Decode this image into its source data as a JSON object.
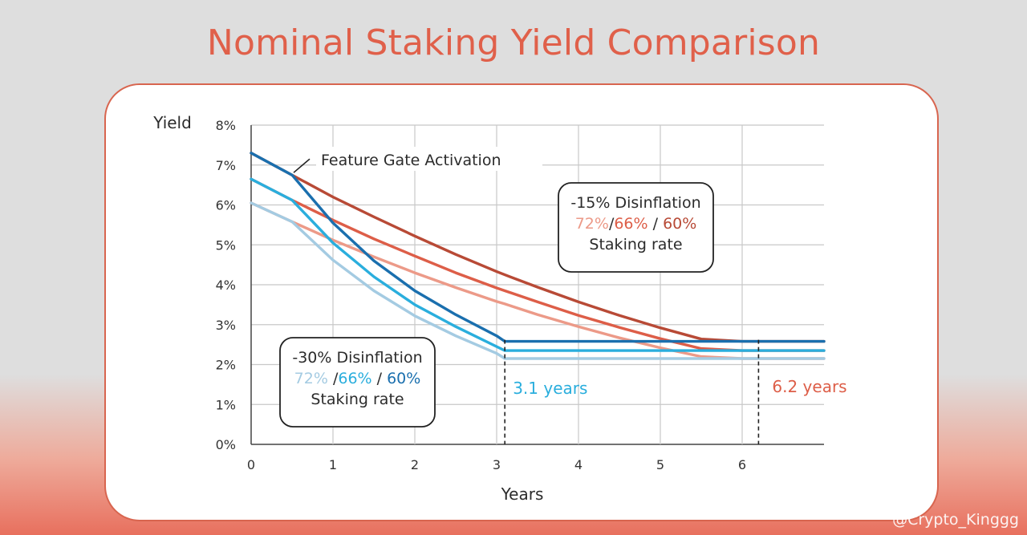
{
  "title": "Nominal Staking Yield Comparison",
  "watermark": "@Crypto_Kinggg",
  "chart_data": {
    "type": "line",
    "title": "Nominal Staking Yield Comparison",
    "xlabel": "Years",
    "ylabel": "Yield",
    "xlim": [
      0,
      7
    ],
    "ylim": [
      0,
      8
    ],
    "x_ticks": [
      "0",
      "1",
      "2",
      "3",
      "4",
      "5",
      "6"
    ],
    "y_ticks": [
      "0%",
      "1%",
      "2%",
      "3%",
      "4%",
      "5%",
      "6%",
      "7%",
      "8%"
    ],
    "grid": true,
    "x": [
      0,
      0.5,
      1,
      1.5,
      2,
      2.5,
      3,
      3.1,
      3.5,
      4,
      4.5,
      5,
      5.5,
      6,
      6.2,
      7
    ],
    "series": [
      {
        "name": "-15% Disinflation 60% staking",
        "color": "#b84a36",
        "values": [
          7.3,
          6.75,
          6.2,
          5.7,
          5.22,
          4.76,
          4.33,
          4.25,
          3.94,
          3.57,
          3.23,
          2.92,
          2.64,
          2.58,
          2.58,
          2.58
        ]
      },
      {
        "name": "-15% Disinflation 66% staking",
        "color": "#dd5e48",
        "values": [
          6.65,
          6.12,
          5.62,
          5.15,
          4.72,
          4.3,
          3.92,
          3.85,
          3.57,
          3.23,
          2.93,
          2.65,
          2.4,
          2.35,
          2.35,
          2.35
        ]
      },
      {
        "name": "-15% Disinflation 72% staking",
        "color": "#ec9a88",
        "values": [
          6.05,
          5.58,
          5.12,
          4.7,
          4.3,
          3.93,
          3.58,
          3.52,
          3.25,
          2.95,
          2.67,
          2.42,
          2.2,
          2.15,
          2.15,
          2.15
        ]
      },
      {
        "name": "-30% Disinflation 60% staking",
        "color": "#1a6fae",
        "values": [
          7.3,
          6.75,
          5.55,
          4.6,
          3.85,
          3.25,
          2.72,
          2.58,
          2.58,
          2.58,
          2.58,
          2.58,
          2.58,
          2.58,
          2.58,
          2.58
        ]
      },
      {
        "name": "-30% Disinflation 66% staking",
        "color": "#2aaedd",
        "values": [
          6.65,
          6.12,
          5.05,
          4.2,
          3.5,
          2.95,
          2.45,
          2.35,
          2.35,
          2.35,
          2.35,
          2.35,
          2.35,
          2.35,
          2.35,
          2.35
        ]
      },
      {
        "name": "-30% Disinflation 72% staking",
        "color": "#a4cbe2",
        "values": [
          6.05,
          5.58,
          4.62,
          3.85,
          3.22,
          2.72,
          2.28,
          2.15,
          2.15,
          2.15,
          2.15,
          2.15,
          2.15,
          2.15,
          2.15,
          2.15
        ]
      }
    ],
    "markers": [
      {
        "x": 3.1,
        "label": "3.1 years",
        "color": "#2aaedd"
      },
      {
        "x": 6.2,
        "label": "6.2 years",
        "color": "#dd5e48"
      }
    ],
    "annotations": {
      "feature_gate": {
        "x": 0.5,
        "y": 6.75,
        "label": "Feature Gate Activation"
      },
      "box_15": {
        "title": "-15% Disinflation",
        "parts": [
          "72%",
          "/",
          "66%",
          " / ",
          "60%"
        ],
        "colors": [
          "#ec9a88",
          "#2b2b2b",
          "#dd5e48",
          "#2b2b2b",
          "#b84a36"
        ],
        "subtitle": "Staking rate"
      },
      "box_30": {
        "title": "-30% Disinflation",
        "parts": [
          "72%",
          " /",
          "66%",
          " / ",
          "60%"
        ],
        "colors": [
          "#a4cbe2",
          "#2b2b2b",
          "#2aaedd",
          "#2b2b2b",
          "#1a6fae"
        ],
        "subtitle": "Staking rate"
      }
    }
  }
}
